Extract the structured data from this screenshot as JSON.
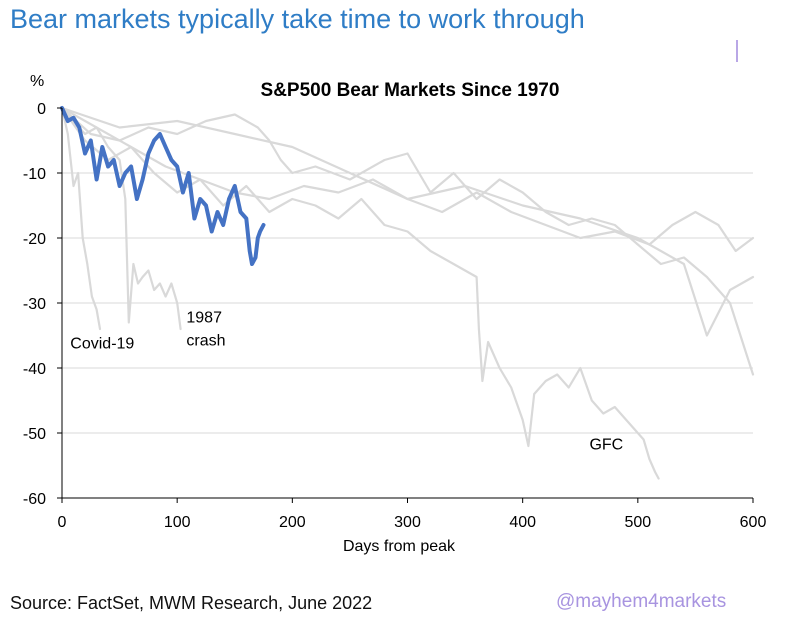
{
  "headline": "Bear markets typically take time to work through",
  "source": "Source: FactSet, MWM Research, June 2022",
  "handle": "@mayhem4markets",
  "colors": {
    "headline": "#2f7dc6",
    "current_series": "#4472c4",
    "past_series": "#d9d9d9",
    "grid": "#d9d9d9",
    "axis": "#000000",
    "handle": "#a894e0"
  },
  "chart_data": {
    "type": "line",
    "title": "S&P500 Bear Markets Since 1970",
    "xlabel": "Days from peak",
    "ylabel": "%",
    "xlim": [
      0,
      600
    ],
    "ylim": [
      -60,
      0
    ],
    "x_ticks": [
      "0",
      "100",
      "200",
      "300",
      "400",
      "500",
      "600"
    ],
    "y_ticks": [
      "0",
      "-10",
      "-20",
      "-30",
      "-40",
      "-50",
      "-60"
    ],
    "grid": "horizontal",
    "annotations": [
      {
        "text": "Covid-19",
        "x": 35,
        "y": -37
      },
      {
        "text": "1987",
        "x": 108,
        "y": -33
      },
      {
        "text": "crash",
        "x": 108,
        "y": -36.5
      },
      {
        "text": "GFC",
        "x": 458,
        "y": -52.5
      }
    ],
    "series": [
      {
        "role": "past",
        "x": [
          0,
          5,
          10,
          14,
          18,
          22,
          26,
          30,
          33
        ],
        "y": [
          0,
          -4,
          -12,
          -10,
          -20,
          -24,
          -29,
          -31,
          -34
        ]
      },
      {
        "role": "past",
        "x": [
          0,
          10,
          20,
          30,
          40,
          50,
          55,
          58,
          62,
          66,
          70,
          75,
          80,
          85,
          90,
          95,
          100,
          103
        ],
        "y": [
          0,
          -2,
          -4,
          -3,
          -6,
          -8,
          -14,
          -33,
          -24,
          -27,
          -26,
          -25,
          -28,
          -27,
          -29,
          -27,
          -30,
          -34
        ]
      },
      {
        "role": "past",
        "x": [
          0,
          20,
          40,
          60,
          80,
          100,
          120,
          140,
          160,
          180,
          200,
          220,
          240,
          260,
          280,
          300,
          320,
          340,
          360,
          362,
          365,
          370,
          380,
          390,
          400,
          405,
          410,
          420,
          430,
          440,
          450,
          460,
          470,
          480,
          490,
          500,
          505,
          510,
          515,
          518
        ],
        "y": [
          0,
          -5,
          -8,
          -6,
          -10,
          -13,
          -11,
          -15,
          -12,
          -16,
          -14,
          -15,
          -17,
          -14,
          -18,
          -19,
          -22,
          -24,
          -26,
          -34,
          -42,
          -36,
          -40,
          -43,
          -48,
          -52,
          -44,
          -42,
          -41,
          -43,
          -40,
          -45,
          -47,
          -46,
          -48,
          -50,
          -51,
          -54,
          -56,
          -57
        ]
      },
      {
        "role": "past",
        "x": [
          0,
          25,
          50,
          75,
          100,
          125,
          150,
          170,
          180,
          190,
          200,
          220,
          250,
          280,
          300,
          320,
          340,
          360,
          380,
          400,
          420,
          440,
          460,
          480,
          500,
          520,
          540,
          560,
          580,
          600
        ],
        "y": [
          0,
          -4,
          -5,
          -3,
          -4,
          -2,
          -1,
          -3,
          -5,
          -8,
          -10,
          -9,
          -11,
          -8,
          -7,
          -13,
          -10,
          -14,
          -11,
          -13,
          -16,
          -18,
          -17,
          -18,
          -21,
          -24,
          -23,
          -26,
          -30,
          -41
        ]
      },
      {
        "role": "past",
        "x": [
          0,
          50,
          100,
          150,
          200,
          250,
          300,
          350,
          400,
          450,
          500,
          520,
          540,
          560,
          580,
          600
        ],
        "y": [
          0,
          -3,
          -2,
          -4,
          -6,
          -10,
          -14,
          -12,
          -15,
          -17,
          -20,
          -22,
          -24,
          -35,
          -28,
          -26
        ]
      },
      {
        "role": "past",
        "x": [
          0,
          30,
          60,
          90,
          120,
          150,
          180,
          210,
          240,
          270,
          300,
          330,
          360,
          390,
          420,
          450,
          480,
          510,
          530,
          550,
          570,
          585,
          600
        ],
        "y": [
          0,
          -3,
          -6,
          -9,
          -11,
          -13,
          -14,
          -12,
          -13,
          -11,
          -14,
          -16,
          -13,
          -16,
          -18,
          -20,
          -19,
          -21,
          -18,
          -16,
          -18,
          -22,
          -20
        ]
      },
      {
        "role": "current",
        "x": [
          0,
          5,
          10,
          15,
          20,
          25,
          30,
          35,
          40,
          45,
          50,
          55,
          60,
          65,
          70,
          75,
          80,
          85,
          90,
          95,
          100,
          105,
          110,
          115,
          120,
          125,
          130,
          135,
          140,
          145,
          150,
          155,
          160,
          163,
          165,
          168,
          170,
          172,
          175
        ],
        "y": [
          0,
          -2,
          -1.5,
          -3,
          -7,
          -5,
          -11,
          -6,
          -9,
          -8,
          -12,
          -10,
          -9,
          -14,
          -11,
          -7,
          -5,
          -4,
          -6,
          -8,
          -9,
          -13,
          -10,
          -17,
          -14,
          -15,
          -19,
          -16,
          -18,
          -14,
          -12,
          -16,
          -17,
          -22,
          -24,
          -23,
          -20,
          -19,
          -18
        ]
      }
    ]
  }
}
